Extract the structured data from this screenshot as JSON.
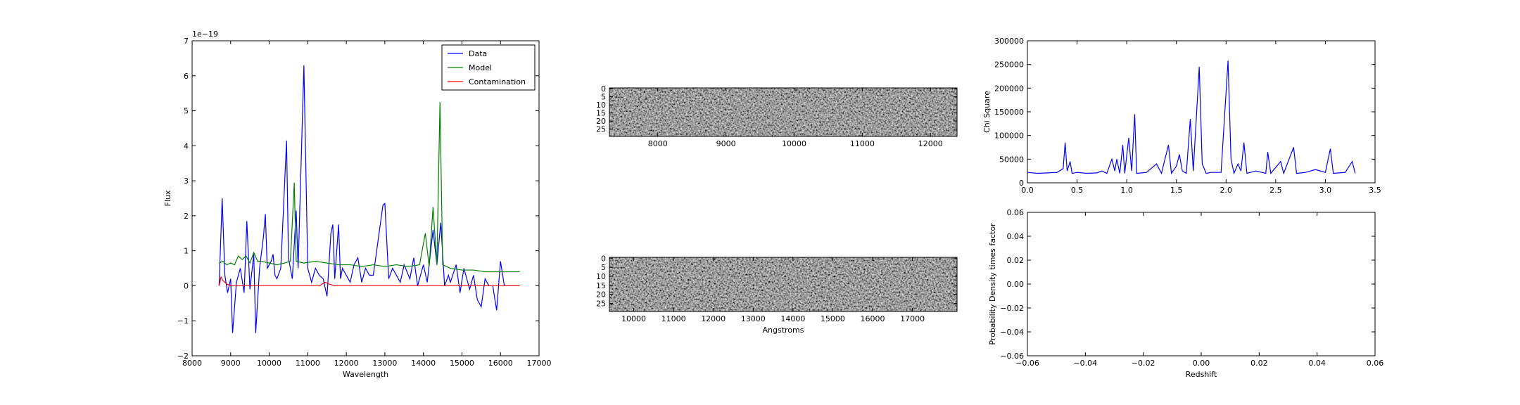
{
  "chart_data": [
    {
      "type": "line",
      "xlabel": "Wavelength",
      "ylabel": "Flux",
      "y_offset_label": "1e−19",
      "xlim": [
        8000,
        17000
      ],
      "xticks": [
        8000,
        9000,
        10000,
        11000,
        12000,
        13000,
        14000,
        15000,
        16000,
        17000
      ],
      "ylim": [
        -2,
        7
      ],
      "yticks": [
        {
          "value": -2,
          "label": "−2"
        },
        {
          "value": -1,
          "label": "−1"
        },
        0,
        1,
        2,
        3,
        4,
        5,
        6,
        7
      ],
      "legend": "upper right",
      "series": [
        {
          "name": "Data",
          "color": "#0000ff",
          "x": [
            8700,
            8780,
            8850,
            8920,
            9000,
            9050,
            9150,
            9250,
            9350,
            9420,
            9500,
            9600,
            9650,
            9750,
            9850,
            9900,
            9950,
            10050,
            10100,
            10150,
            10200,
            10300,
            10450,
            10500,
            10600,
            10700,
            10750,
            10900,
            11000,
            11100,
            11200,
            11300,
            11400,
            11500,
            11600,
            11650,
            11700,
            11800,
            11850,
            11900,
            12100,
            12200,
            12300,
            12400,
            12500,
            12600,
            12700,
            12850,
            12950,
            13000,
            13100,
            13200,
            13400,
            13500,
            13650,
            13750,
            13850,
            14000,
            14100,
            14250,
            14350,
            14450,
            14550,
            14650,
            14700,
            14850,
            14950,
            15050,
            15200,
            15300,
            15400,
            15500,
            15600,
            15700,
            15800,
            15900,
            16000,
            16100,
            16500
          ],
          "values": [
            0,
            2.5,
            0.3,
            -0.2,
            0.2,
            -1.35,
            0.1,
            0.5,
            -0.2,
            1.85,
            -0.1,
            0.9,
            -1.35,
            0.5,
            1.4,
            2.05,
            0.5,
            0.7,
            0.9,
            0.3,
            0.2,
            0.5,
            4.15,
            0.8,
            0.2,
            2.15,
            0.5,
            6.3,
            0.5,
            0.1,
            0.5,
            0.3,
            0.2,
            -0.3,
            1.5,
            1.75,
            0.2,
            1.75,
            0.2,
            0.5,
            0.1,
            0.6,
            0.8,
            0.1,
            0.5,
            0.3,
            0.3,
            1.5,
            2.3,
            2.35,
            0.2,
            0.5,
            0.1,
            0.6,
            0.2,
            0.8,
            0,
            0.6,
            0.1,
            1.6,
            0.6,
            1.8,
            0,
            0.3,
            0.1,
            0.6,
            -0.2,
            0.5,
            -0.1,
            0.3,
            -0.4,
            -0.6,
            0.2,
            0,
            0,
            -0.7,
            0.7,
            0,
            0
          ]
        },
        {
          "name": "Model",
          "color": "#008000",
          "x": [
            8700,
            8800,
            8900,
            9000,
            9100,
            9200,
            9300,
            9400,
            9500,
            9600,
            9700,
            9800,
            10000,
            10200,
            10400,
            10550,
            10650,
            10700,
            10900,
            11200,
            11500,
            11800,
            12100,
            12400,
            12700,
            13000,
            13300,
            13600,
            13900,
            14050,
            14150,
            14250,
            14350,
            14430,
            14500,
            14700,
            15000,
            15300,
            15600,
            15900,
            16200,
            16500
          ],
          "values": [
            0.65,
            0.7,
            0.6,
            0.65,
            0.6,
            0.85,
            0.75,
            0.85,
            0.65,
            0.95,
            0.7,
            0.7,
            0.65,
            0.6,
            0.65,
            0.7,
            2.95,
            0.7,
            0.65,
            0.7,
            0.65,
            0.6,
            0.6,
            0.55,
            0.6,
            0.55,
            0.6,
            0.55,
            0.6,
            1.5,
            0.55,
            2.25,
            0.6,
            5.25,
            0.6,
            0.5,
            0.45,
            0.45,
            0.4,
            0.4,
            0.4,
            0.4
          ]
        },
        {
          "name": "Contamination",
          "color": "#ff0000",
          "x": [
            8700,
            8750,
            8800,
            8900,
            9000,
            11300,
            11450,
            11550,
            11700,
            16500
          ],
          "values": [
            0,
            0.25,
            0.15,
            0.05,
            0,
            0,
            0.1,
            0.05,
            0,
            0
          ]
        }
      ]
    },
    {
      "type": "image",
      "xlim": [
        7290,
        12390
      ],
      "xticks": [
        8000,
        9000,
        10000,
        11000,
        12000
      ],
      "ylim": [
        29.5,
        -0.5
      ],
      "yticks": [
        0,
        5,
        10,
        15,
        20,
        25
      ]
    },
    {
      "type": "image",
      "xlabel": "Angstroms",
      "xlim": [
        9390,
        18120
      ],
      "xticks": [
        10000,
        11000,
        12000,
        13000,
        14000,
        15000,
        16000,
        17000
      ],
      "ylim": [
        29.5,
        -0.5
      ],
      "yticks": [
        0,
        5,
        10,
        15,
        20,
        25
      ]
    },
    {
      "type": "line",
      "ylabel": "Chi Square",
      "xlim": [
        0,
        3.5
      ],
      "xticks": [
        {
          "value": 0,
          "label": "0.0"
        },
        0.5,
        {
          "value": 1,
          "label": "1.0"
        },
        1.5,
        {
          "value": 2,
          "label": "2.0"
        },
        2.5,
        {
          "value": 3,
          "label": "3.0"
        },
        3.5
      ],
      "ylim": [
        0,
        300000
      ],
      "yticks": [
        0,
        50000,
        100000,
        150000,
        200000,
        250000,
        300000
      ],
      "series": [
        {
          "color": "#0000ff",
          "x": [
            0,
            0.1,
            0.2,
            0.3,
            0.36,
            0.38,
            0.4,
            0.43,
            0.45,
            0.5,
            0.6,
            0.7,
            0.75,
            0.8,
            0.85,
            0.88,
            0.9,
            0.93,
            0.96,
            0.98,
            1.02,
            1.05,
            1.08,
            1.1,
            1.2,
            1.3,
            1.35,
            1.42,
            1.45,
            1.5,
            1.53,
            1.56,
            1.6,
            1.64,
            1.67,
            1.73,
            1.76,
            1.8,
            1.85,
            1.95,
            2.02,
            2.05,
            2.08,
            2.12,
            2.15,
            2.18,
            2.21,
            2.3,
            2.4,
            2.42,
            2.45,
            2.55,
            2.58,
            2.68,
            2.71,
            2.8,
            2.9,
            3.0,
            3.05,
            3.08,
            3.2,
            3.27,
            3.3
          ],
          "values": [
            22000,
            20000,
            21000,
            22000,
            30000,
            85000,
            25000,
            45000,
            20000,
            22000,
            20000,
            21000,
            25000,
            20000,
            50000,
            25000,
            50000,
            20000,
            80000,
            20000,
            95000,
            25000,
            145000,
            20000,
            22000,
            40000,
            20000,
            80000,
            20000,
            35000,
            60000,
            25000,
            20000,
            135000,
            25000,
            245000,
            40000,
            20000,
            22000,
            22000,
            258000,
            50000,
            20000,
            40000,
            25000,
            85000,
            20000,
            25000,
            20000,
            65000,
            20000,
            45000,
            20000,
            75000,
            20000,
            22000,
            28000,
            22000,
            72000,
            20000,
            22000,
            45000,
            20000
          ]
        }
      ]
    },
    {
      "type": "line",
      "xlabel": "Redshift",
      "ylabel": "Probability Density times factor",
      "xlim": [
        -0.06,
        0.06
      ],
      "xticks": [
        {
          "value": -0.06,
          "label": "−0.06"
        },
        {
          "value": -0.04,
          "label": "−0.04"
        },
        {
          "value": -0.02,
          "label": "−0.02"
        },
        {
          "value": 0,
          "label": "0.00"
        },
        0.02,
        0.04,
        0.06
      ],
      "ylim": [
        -0.06,
        0.06
      ],
      "yticks": [
        {
          "value": -0.06,
          "label": "−0.06"
        },
        {
          "value": -0.04,
          "label": "−0.04"
        },
        {
          "value": -0.02,
          "label": "−0.02"
        },
        {
          "value": 0,
          "label": "0.00"
        },
        0.02,
        0.04,
        0.06
      ],
      "series": []
    }
  ]
}
